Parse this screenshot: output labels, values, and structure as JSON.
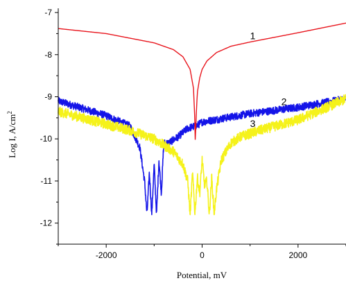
{
  "chart_data": {
    "type": "line",
    "xlabel": "Potential, mV",
    "ylabel_main": "Log I, A/cm",
    "ylabel_sup": "2",
    "xlim": [
      -3000,
      3000
    ],
    "ylim": [
      -12.5,
      -6.9
    ],
    "x_ticks": [
      -2000,
      0,
      2000
    ],
    "y_ticks": [
      -12,
      -11,
      -10,
      -9,
      -8,
      -7
    ],
    "grid": false,
    "series": [
      {
        "name": "1",
        "color": "#e8141c",
        "noise": 0,
        "label_at": [
          1000,
          -7.63
        ],
        "x": [
          -3000,
          -2000,
          -1000,
          -600,
          -400,
          -250,
          -180,
          -150,
          -140,
          -130,
          -100,
          -50,
          0,
          100,
          300,
          600,
          1000,
          2000,
          3000
        ],
        "y": [
          -7.38,
          -7.5,
          -7.72,
          -7.88,
          -8.05,
          -8.35,
          -8.8,
          -9.6,
          -10.3,
          -9.6,
          -8.9,
          -8.55,
          -8.35,
          -8.15,
          -7.95,
          -7.8,
          -7.7,
          -7.48,
          -7.25
        ]
      },
      {
        "name": "2",
        "color": "#1414e8",
        "noise": 0.09,
        "label_at": [
          1650,
          -9.2
        ],
        "x": [
          -3000,
          -2000,
          -1500,
          -1300,
          -1200,
          -1150,
          -1100,
          -1050,
          -1000,
          -950,
          -900,
          -850,
          -800,
          -700,
          -500,
          -300,
          -100,
          0,
          500,
          1000,
          2000,
          3000
        ],
        "y": [
          -9.1,
          -9.45,
          -9.7,
          -10.2,
          -11.0,
          -11.8,
          -10.8,
          -11.8,
          -10.6,
          -11.8,
          -10.5,
          -11.3,
          -10.1,
          -10.1,
          -9.95,
          -9.75,
          -9.68,
          -9.6,
          -9.5,
          -9.4,
          -9.25,
          -9.05
        ]
      },
      {
        "name": "3",
        "color": "#f5f21a",
        "noise": 0.12,
        "label_at": [
          1000,
          -9.72
        ],
        "x": [
          -3000,
          -2000,
          -1500,
          -1000,
          -600,
          -400,
          -300,
          -250,
          -200,
          -150,
          -100,
          -50,
          0,
          50,
          100,
          150,
          200,
          250,
          300,
          400,
          600,
          800,
          1200,
          2000,
          3000
        ],
        "y": [
          -9.35,
          -9.65,
          -9.8,
          -10.0,
          -10.3,
          -10.6,
          -11.0,
          -11.8,
          -10.8,
          -11.8,
          -10.9,
          -11.3,
          -10.5,
          -11.1,
          -11.0,
          -11.8,
          -10.9,
          -11.8,
          -11.2,
          -10.5,
          -10.1,
          -9.95,
          -9.8,
          -9.55,
          -9.05
        ]
      }
    ]
  }
}
